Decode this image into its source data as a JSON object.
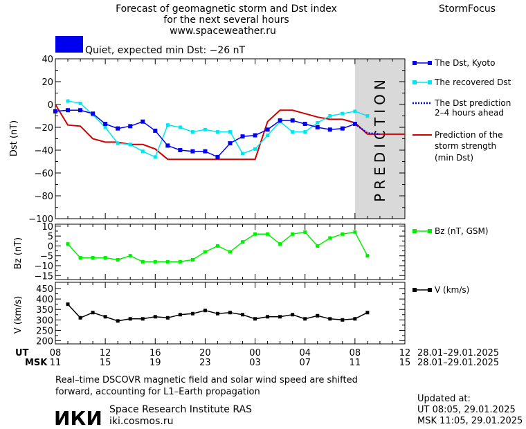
{
  "header": {
    "title_line1": "Forecast of geomagnetic storm and Dst index",
    "title_line2": "for the next several hours",
    "url": "www.spaceweather.ru",
    "brand": "StormFocus",
    "status_text": "Quiet, expected min Dst: −26 nT"
  },
  "colors": {
    "dst": "#0000ee",
    "recovered": "#00e5ee",
    "forecast": "#0000ee",
    "strength": "#d00000",
    "bz": "#00ee00",
    "v": "#000000",
    "prediction_band": "#d9d9d9",
    "status_swatch": "#0000ee"
  },
  "prediction_label": "PREDICTION",
  "legend": {
    "dst": "The Dst, Kyoto",
    "recovered": "The recovered Dst",
    "forecast_l1": "The Dst prediction",
    "forecast_l2": "2–4 hours ahead",
    "strength_l1": "Prediction of the",
    "strength_l2": "storm strength",
    "strength_l3": "(min Dst)",
    "bz": "Bz (nT, GSM)",
    "v": "V (km/s)"
  },
  "time_axis": {
    "ut_label": "UT",
    "msk_label": "MSK",
    "ut_ticks": [
      "08",
      "12",
      "16",
      "20",
      "00",
      "04",
      "08",
      "12"
    ],
    "msk_ticks": [
      "11",
      "15",
      "19",
      "23",
      "03",
      "07",
      "11",
      "15"
    ],
    "ut_date": "28.01–29.01.2025",
    "msk_date": "28.01–29.01.2025"
  },
  "footer": {
    "note_l1": "Real–time DSCOVR magnetic field and solar wind speed are shifted",
    "note_l2": "forward, accounting for L1–Earth propagation",
    "logo": "ИКИ",
    "institute": "Space Research Institute RAS",
    "site": "iki.cosmos.ru",
    "updated_label": "Updated at:",
    "updated_ut": "UT   08:05, 29.01.2025",
    "updated_msk": "MSK 11:05, 29.01.2025"
  },
  "chart_data": [
    {
      "type": "line",
      "ylabel": "Dst (nT)",
      "xlabel": "UT",
      "xlim": [
        0,
        28
      ],
      "ylim": [
        -100,
        40
      ],
      "yticks": [
        -100,
        -80,
        -60,
        -40,
        -20,
        0,
        20,
        40
      ],
      "prediction_window_hours": [
        24,
        28
      ],
      "series": [
        {
          "name": "The Dst, Kyoto",
          "x": [
            0,
            1,
            2,
            3,
            4,
            5,
            6,
            7,
            8,
            9,
            10,
            11,
            12,
            13,
            14,
            15,
            16,
            17,
            18,
            19,
            20,
            21,
            22,
            23,
            24
          ],
          "y": [
            -6,
            -5,
            -5,
            -8,
            -17,
            -21,
            -19,
            -15,
            -23,
            -36,
            -40,
            -41,
            -41,
            -46,
            -34,
            -28,
            -27,
            -22,
            -14,
            -14,
            -17,
            -20,
            -22,
            -21,
            -17
          ]
        },
        {
          "name": "The recovered Dst",
          "x": [
            1,
            2,
            3,
            4,
            5,
            6,
            7,
            8,
            9,
            10,
            11,
            12,
            13,
            14,
            15,
            16,
            17,
            18,
            19,
            20,
            21,
            22,
            23,
            24,
            25
          ],
          "y": [
            3,
            1,
            -9,
            -20,
            -34,
            -35,
            -41,
            -46,
            -18,
            -20,
            -24,
            -22,
            -24,
            -24,
            -43,
            -39,
            -27,
            -15,
            -24,
            -24,
            -16,
            -10,
            -8,
            -6,
            -10
          ]
        },
        {
          "name": "The Dst prediction 2–4 hours ahead",
          "x": [
            24,
            25,
            26
          ],
          "y": [
            -17,
            -25,
            -26
          ]
        },
        {
          "name": "Prediction of the storm strength (min Dst)",
          "x": [
            0,
            1,
            2,
            3,
            4,
            5,
            6,
            7,
            8,
            9,
            10,
            11,
            12,
            13,
            14,
            15,
            16,
            17,
            18,
            19,
            20,
            21,
            22,
            23,
            24,
            25,
            26,
            27,
            28
          ],
          "y": [
            0,
            -18,
            -19,
            -30,
            -33,
            -33,
            -35,
            -35,
            -39,
            -48,
            -48,
            -48,
            -48,
            -48,
            -48,
            -48,
            -48,
            -15,
            -5,
            -5,
            -8,
            -11,
            -13,
            -13,
            -16,
            -26,
            -26,
            -26,
            -26
          ]
        }
      ]
    },
    {
      "type": "line",
      "ylabel": "Bz (nT)",
      "xlabel": "UT",
      "xlim": [
        0,
        28
      ],
      "ylim": [
        -17,
        11
      ],
      "yticks": [
        -15,
        -10,
        -5,
        0,
        5,
        10
      ],
      "series": [
        {
          "name": "Bz (nT, GSM)",
          "x": [
            1,
            2,
            3,
            4,
            5,
            6,
            7,
            8,
            9,
            10,
            11,
            12,
            13,
            14,
            15,
            16,
            17,
            18,
            19,
            20,
            21,
            22,
            23,
            24,
            25
          ],
          "y": [
            1,
            -6,
            -6,
            -6,
            -7,
            -5,
            -8,
            -8,
            -8,
            -8,
            -7,
            -3,
            0,
            -3,
            2,
            6,
            6,
            1,
            6,
            7,
            0,
            4,
            6,
            7,
            -5
          ]
        }
      ]
    },
    {
      "type": "line",
      "ylabel": "V (km/s)",
      "xlabel": "UT",
      "xlim": [
        0,
        28
      ],
      "ylim": [
        185,
        480
      ],
      "yticks": [
        200,
        250,
        300,
        350,
        400,
        450
      ],
      "series": [
        {
          "name": "V (km/s)",
          "x": [
            1,
            2,
            3,
            4,
            5,
            6,
            7,
            8,
            9,
            10,
            11,
            12,
            13,
            14,
            15,
            16,
            17,
            18,
            19,
            20,
            21,
            22,
            23,
            24,
            25
          ],
          "y": [
            375,
            310,
            335,
            315,
            295,
            305,
            305,
            315,
            310,
            325,
            330,
            345,
            330,
            335,
            325,
            305,
            315,
            315,
            325,
            305,
            320,
            305,
            300,
            305,
            335
          ]
        }
      ]
    }
  ]
}
